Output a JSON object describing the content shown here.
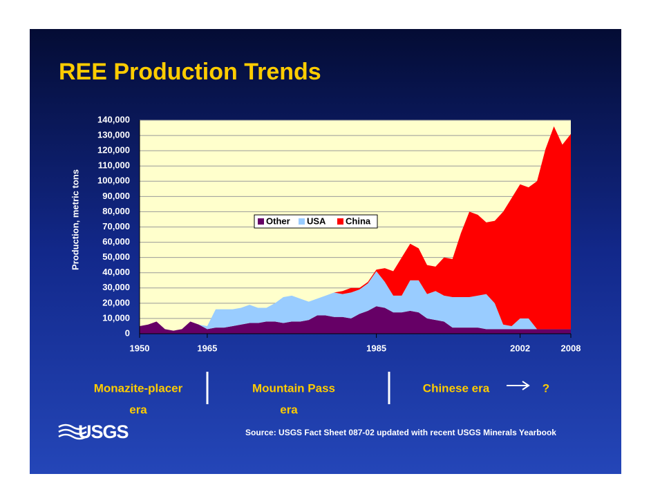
{
  "title": "REE Production Trends",
  "chart_data": {
    "type": "stacked_area",
    "y_label": "Production, metric tons",
    "categories": [
      "1950",
      null,
      null,
      null,
      null,
      null,
      null,
      null,
      "1965",
      null,
      null,
      null,
      null,
      null,
      null,
      null,
      null,
      null,
      null,
      null,
      null,
      null,
      null,
      null,
      null,
      null,
      null,
      null,
      "1985",
      null,
      null,
      null,
      null,
      null,
      null,
      null,
      null,
      null,
      null,
      null,
      null,
      null,
      null,
      null,
      null,
      "2002",
      null,
      null,
      null,
      null,
      null,
      "2008"
    ],
    "series": [
      {
        "name": "Other",
        "color": "#660066",
        "values": [
          5000,
          6000,
          8000,
          3000,
          2000,
          3000,
          8000,
          6000,
          3000,
          4000,
          4000,
          5000,
          6000,
          7000,
          7000,
          8000,
          8000,
          7000,
          8000,
          8000,
          9000,
          12000,
          12000,
          11000,
          11000,
          10000,
          13000,
          15000,
          18000,
          17000,
          14000,
          14000,
          15000,
          14000,
          10000,
          9000,
          8000,
          4000,
          4000,
          4000,
          4000,
          3000,
          3000,
          3000,
          3000,
          3000,
          3000,
          3000,
          3000,
          3000,
          3000,
          3000
        ]
      },
      {
        "name": "USA",
        "color": "#99ccff",
        "values": [
          0,
          0,
          0,
          0,
          0,
          0,
          0,
          0,
          2000,
          12000,
          12000,
          11000,
          11000,
          12000,
          10000,
          9000,
          12000,
          17000,
          17000,
          15000,
          12000,
          11000,
          13000,
          16000,
          15000,
          17000,
          16000,
          18000,
          23000,
          17000,
          11000,
          11000,
          20000,
          21000,
          16000,
          19000,
          17000,
          20000,
          20000,
          20000,
          21000,
          23000,
          17000,
          3000,
          2000,
          7000,
          7000,
          0,
          0,
          0,
          0,
          0
        ]
      },
      {
        "name": "China",
        "color": "#ff0000",
        "values": [
          0,
          0,
          0,
          0,
          0,
          0,
          0,
          0,
          0,
          0,
          0,
          0,
          0,
          0,
          0,
          0,
          0,
          0,
          0,
          0,
          0,
          0,
          0,
          0,
          2000,
          3000,
          1000,
          1000,
          1000,
          9000,
          16000,
          25000,
          24000,
          21000,
          19000,
          16000,
          25000,
          25000,
          42000,
          56000,
          53000,
          47000,
          54000,
          74000,
          84000,
          88000,
          86000,
          97000,
          118000,
          133000,
          121000,
          128000
        ]
      }
    ],
    "ylim": [
      0,
      140000
    ],
    "yticks": [
      0,
      {
        "value": 10000,
        "label": "10,000"
      },
      {
        "value": 20000,
        "label": "20,000"
      },
      {
        "value": 30000,
        "label": "30,000"
      },
      {
        "value": 40000,
        "label": "40,000"
      },
      {
        "value": 50000,
        "label": "50,000"
      },
      {
        "value": 60000,
        "label": "60,000"
      },
      {
        "value": 70000,
        "label": "70,000"
      },
      {
        "value": 80000,
        "label": "80,000"
      },
      {
        "value": 90000,
        "label": "90,000"
      },
      {
        "value": 100000,
        "label": "100,000"
      },
      {
        "value": 110000,
        "label": "110,000"
      },
      {
        "value": 120000,
        "label": "120,000"
      },
      {
        "value": 130000,
        "label": "130,000"
      },
      {
        "value": 140000,
        "label": "140,000"
      }
    ],
    "grid": true,
    "legend": "center"
  },
  "eras": [
    [
      "Monazite-placer",
      "era"
    ],
    [
      "Mountain Pass",
      "era"
    ],
    [
      "Chinese era"
    ]
  ],
  "next_era": "?",
  "source": "Source: USGS Fact Sheet 087-02 updated with recent USGS Minerals Yearbook",
  "logo": "USGS"
}
